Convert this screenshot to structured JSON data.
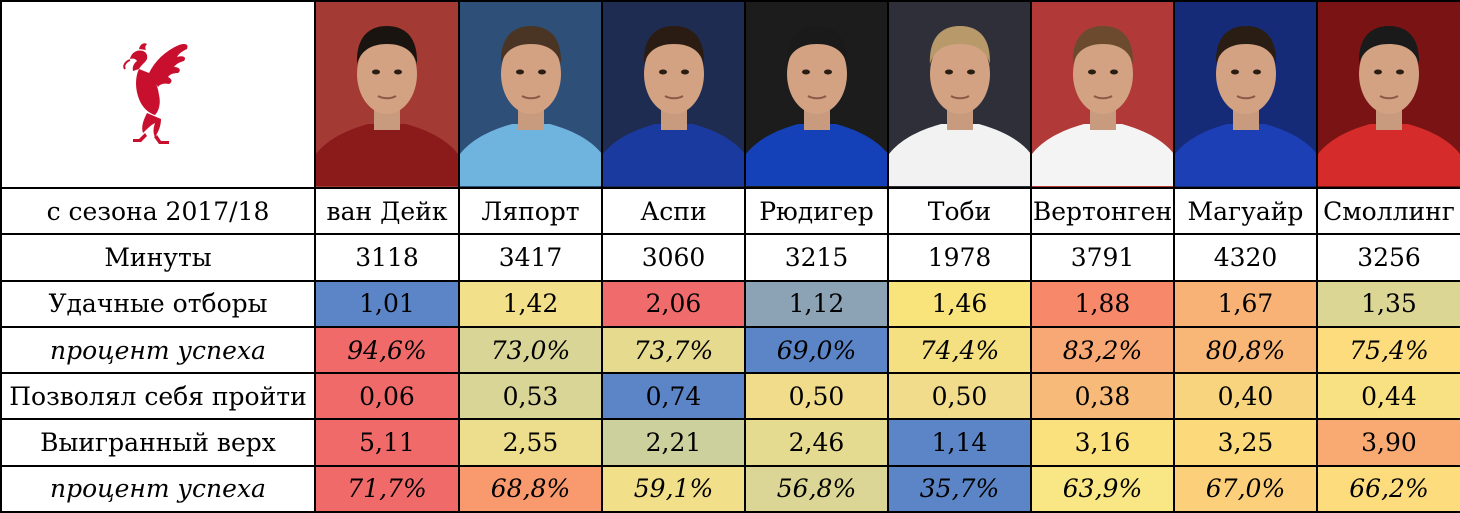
{
  "header": {
    "club_logo_icon": "liverpool-liver-bird-icon",
    "players": [
      {
        "name": "ван Дейк",
        "kit": "#8b1a1a",
        "bg": "#a43a34",
        "hair": "#1a1410"
      },
      {
        "name": "Ляпорт",
        "kit": "#6fb3df",
        "bg": "#2e4f78",
        "hair": "#4a3524"
      },
      {
        "name": "Аспи",
        "kit": "#1b3aa0",
        "bg": "#1e2c52",
        "hair": "#2a1c12"
      },
      {
        "name": "Рюдигер",
        "kit": "#1541b8",
        "bg": "#1c1c1c",
        "hair": "#1a1a1a"
      },
      {
        "name": "Тоби",
        "kit": "#f2f2f2",
        "bg": "#2f2f3a",
        "hair": "#b89a6a"
      },
      {
        "name": "Вертонген",
        "kit": "#f4f4f4",
        "bg": "#b13a38",
        "hair": "#6b4a2e"
      },
      {
        "name": "Магуайр",
        "kit": "#1d3fb5",
        "bg": "#162b78",
        "hair": "#2a1d14"
      },
      {
        "name": "Смоллинг",
        "kit": "#d62b2b",
        "bg": "#7a1414",
        "hair": "#1a1a1a"
      }
    ]
  },
  "rows": [
    {
      "label": "с сезона 2017/18",
      "italic": false,
      "use_names": true,
      "colors": [
        "#ffffff",
        "#ffffff",
        "#ffffff",
        "#ffffff",
        "#ffffff",
        "#ffffff",
        "#ffffff",
        "#ffffff"
      ]
    },
    {
      "label": "Минуты",
      "italic": false,
      "values": [
        "3118",
        "3417",
        "3060",
        "3215",
        "1978",
        "3791",
        "4320",
        "3256"
      ],
      "colors": [
        "#ffffff",
        "#ffffff",
        "#ffffff",
        "#ffffff",
        "#ffffff",
        "#ffffff",
        "#ffffff",
        "#ffffff"
      ]
    },
    {
      "label": "Удачные отборы",
      "italic": false,
      "values": [
        "1,01",
        "1,42",
        "2,06",
        "1,12",
        "1,46",
        "1,88",
        "1,67",
        "1,35"
      ],
      "colors": [
        "#5b85c6",
        "#f3e08a",
        "#f06c6c",
        "#8ca3b5",
        "#f9e37b",
        "#f7886a",
        "#f9b276",
        "#dcd695"
      ]
    },
    {
      "label": "процент успеха",
      "italic": true,
      "values": [
        "94,6%",
        "73,0%",
        "73,7%",
        "69,0%",
        "74,4%",
        "83,2%",
        "80,8%",
        "75,4%"
      ],
      "colors": [
        "#f06a6a",
        "#d9d596",
        "#e6da8e",
        "#5b85c6",
        "#f5e081",
        "#f8a874",
        "#f9b777",
        "#fcdc7d"
      ]
    },
    {
      "label": "Позволял себя пройти",
      "italic": false,
      "values": [
        "0,06",
        "0,53",
        "0,74",
        "0,50",
        "0,50",
        "0,38",
        "0,40",
        "0,44"
      ],
      "colors": [
        "#f06a6a",
        "#d9d596",
        "#5b85c6",
        "#f0dc8b",
        "#f0dc8b",
        "#f8ba78",
        "#f8d47e",
        "#f8e182"
      ]
    },
    {
      "label": "Выигранный верх",
      "italic": false,
      "values": [
        "5,11",
        "2,55",
        "2,21",
        "2,46",
        "1,14",
        "3,16",
        "3,25",
        "3,90"
      ],
      "colors": [
        "#f06a6a",
        "#ecde8c",
        "#cbd09d",
        "#e4da90",
        "#5b85c6",
        "#fbe17e",
        "#fcda7c",
        "#f8aa72"
      ]
    },
    {
      "label": "процент успеха",
      "italic": true,
      "values": [
        "71,7%",
        "68,8%",
        "59,1%",
        "56,8%",
        "35,7%",
        "63,9%",
        "67,0%",
        "66,2%"
      ],
      "colors": [
        "#f06a6a",
        "#f89a6e",
        "#f1e089",
        "#dcd696",
        "#5b85c6",
        "#f8e784",
        "#fcd07b",
        "#fcdc7d"
      ]
    }
  ]
}
